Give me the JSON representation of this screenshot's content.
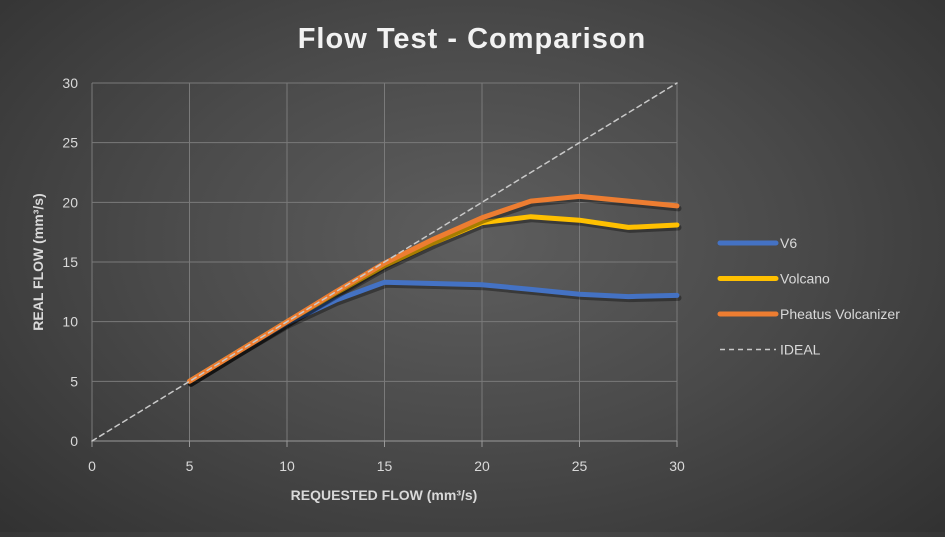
{
  "chart_data": {
    "type": "line",
    "title": "Flow Test - Comparison",
    "xlabel": "REQUESTED FLOW (mm³/s)",
    "ylabel": "REAL FLOW (mm³/s)",
    "xlim": [
      0,
      30
    ],
    "ylim": [
      0,
      30
    ],
    "x_ticks": [
      0,
      5,
      10,
      15,
      20,
      25,
      30
    ],
    "y_ticks": [
      0,
      5,
      10,
      15,
      20,
      25,
      30
    ],
    "grid": true,
    "legend_position": "right",
    "series": [
      {
        "name": "V6",
        "color": "#4472c4",
        "dash": "solid",
        "x": [
          5,
          7.5,
          10,
          12.5,
          15,
          17.5,
          20,
          22.5,
          25,
          27.5,
          30
        ],
        "values": [
          5,
          7.5,
          9.9,
          11.8,
          13.3,
          13.2,
          13.1,
          12.7,
          12.3,
          12.1,
          12.2
        ]
      },
      {
        "name": "Volcano",
        "color": "#ffc000",
        "dash": "solid",
        "x": [
          5,
          7.5,
          10,
          12.5,
          15,
          17.5,
          20,
          22.5,
          25,
          27.5,
          30
        ],
        "values": [
          5,
          7.5,
          10,
          12.4,
          14.7,
          16.6,
          18.3,
          18.8,
          18.5,
          17.9,
          18.1
        ]
      },
      {
        "name": "Pheatus Volcanizer",
        "color": "#ed7d31",
        "dash": "solid",
        "x": [
          5,
          7.5,
          10,
          12.5,
          15,
          17.5,
          20,
          22.5,
          25,
          27.5,
          30
        ],
        "values": [
          5,
          7.5,
          10,
          12.5,
          14.9,
          16.9,
          18.7,
          20.1,
          20.5,
          20.1,
          19.7
        ]
      },
      {
        "name": "IDEAL",
        "color": "#c9c9c9",
        "dash": "dashed",
        "x": [
          0,
          30
        ],
        "values": [
          0,
          30
        ]
      }
    ]
  }
}
